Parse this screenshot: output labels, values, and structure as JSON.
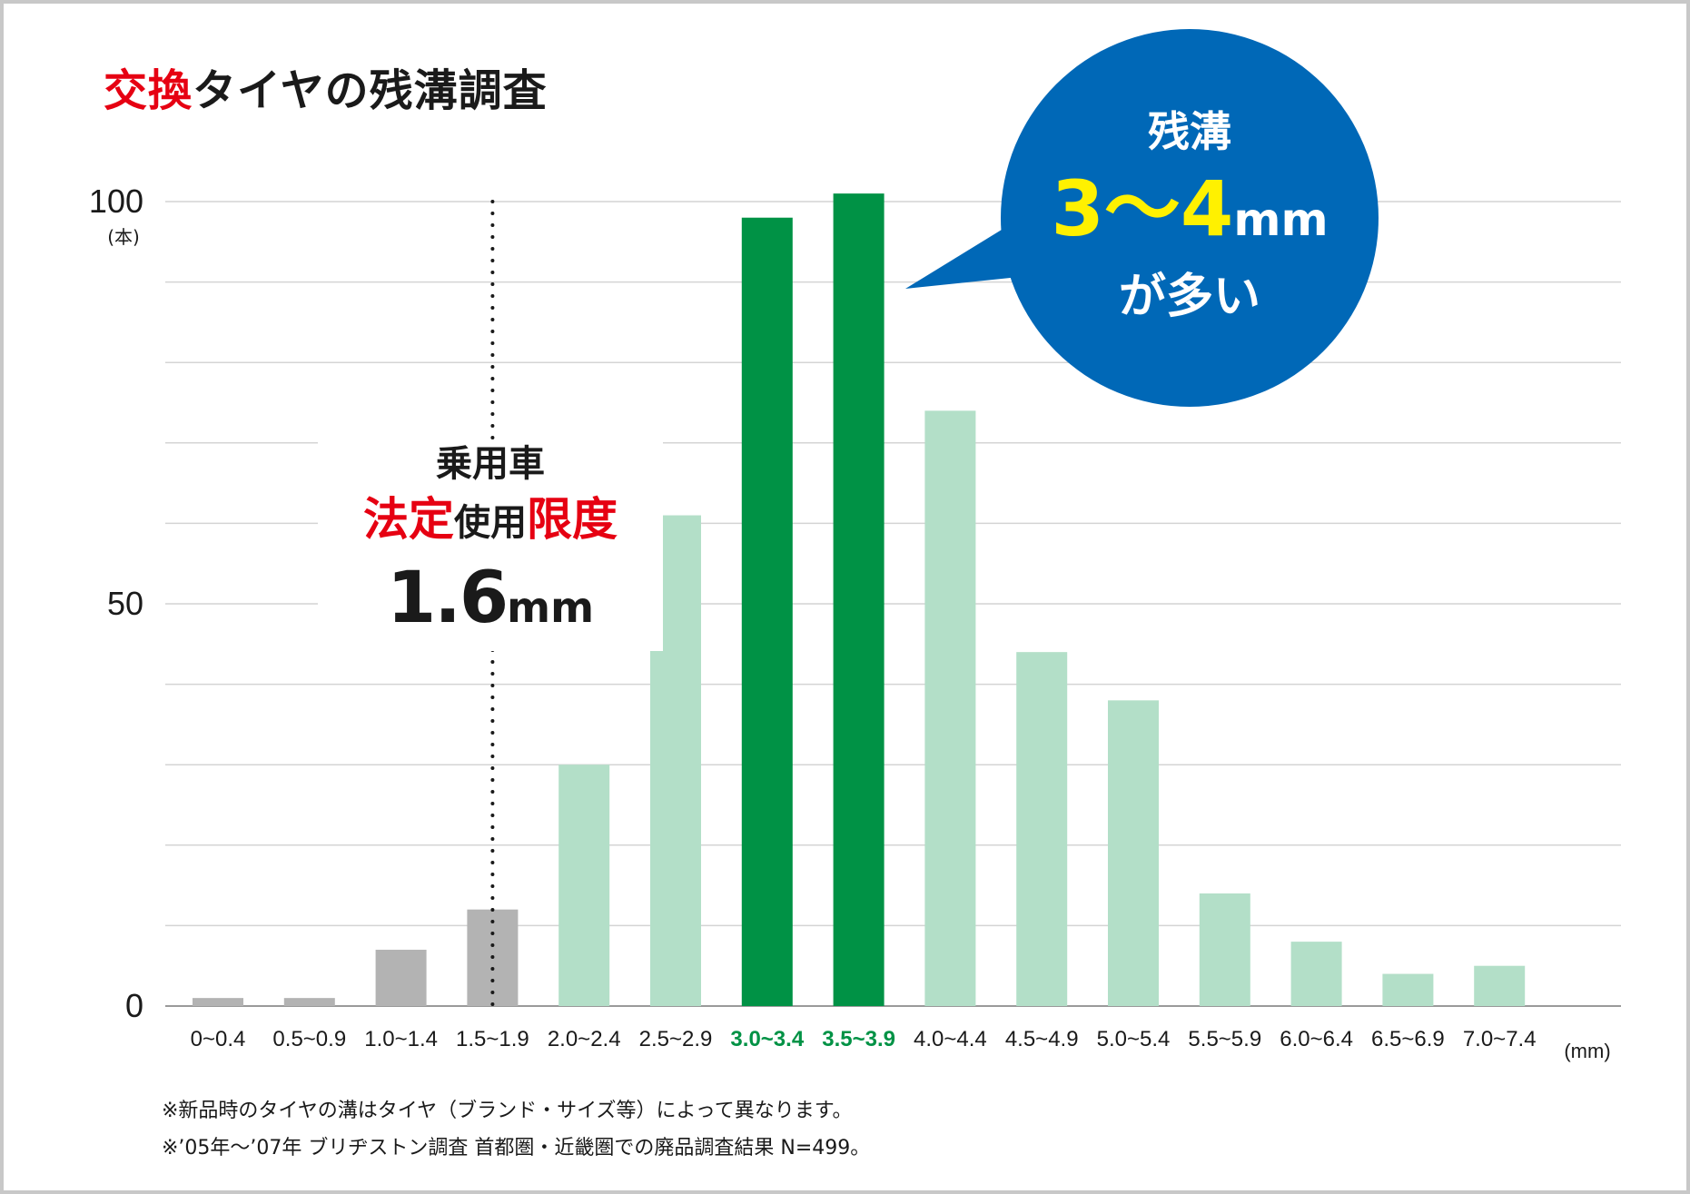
{
  "title": {
    "highlight": "交換",
    "rest": "タイヤの残溝調査"
  },
  "chart_data": {
    "type": "bar",
    "categories": [
      "0~0.4",
      "0.5~0.9",
      "1.0~1.4",
      "1.5~1.9",
      "2.0~2.4",
      "2.5~2.9",
      "3.0~3.4",
      "3.5~3.9",
      "4.0~4.4",
      "4.5~4.9",
      "5.0~5.4",
      "5.5~5.9",
      "6.0~6.4",
      "6.5~6.9",
      "7.0~7.4"
    ],
    "values": [
      1,
      1,
      7,
      12,
      30,
      61,
      98,
      101,
      74,
      44,
      38,
      14,
      8,
      4,
      5
    ],
    "ylim": [
      0,
      100
    ],
    "ytick_values": [
      0,
      50,
      100
    ],
    "ytick_labels": [
      "0",
      "50",
      "100"
    ],
    "yunit": "(本)",
    "xunit": "(mm)",
    "grid": true,
    "gridline_step": 10,
    "highlight_categories": [
      "3.0~3.4",
      "3.5~3.9"
    ],
    "below_limit_categories": [
      "0~0.4",
      "0.5~0.9",
      "1.0~1.4",
      "1.5~1.9"
    ],
    "limit_value": 1.6,
    "colors": {
      "below_limit": "#b3b3b3",
      "normal": "#b3dfc8",
      "highlight": "#009245",
      "highlight_label": "#009245",
      "grid": "#d4d4d4",
      "axis": "#9a9a9a",
      "limit_line": "#1a1a1a"
    }
  },
  "annotation_legal": {
    "line1": "乗用車",
    "red1": "法定",
    "mid": "使用",
    "red2": "限度",
    "value": "1.6",
    "unit": "mm"
  },
  "callout": {
    "line1": "残溝",
    "value": "3～4",
    "unit": "mm",
    "line3": "が多い",
    "color": "#0068b7"
  },
  "notes": [
    "※新品時のタイヤの溝はタイヤ（ブランド・サイズ等）によって異なります。",
    "※’05年～’07年 ブリヂストン調査 首都圏・近畿圏での廃品調査結果 N=499。"
  ]
}
